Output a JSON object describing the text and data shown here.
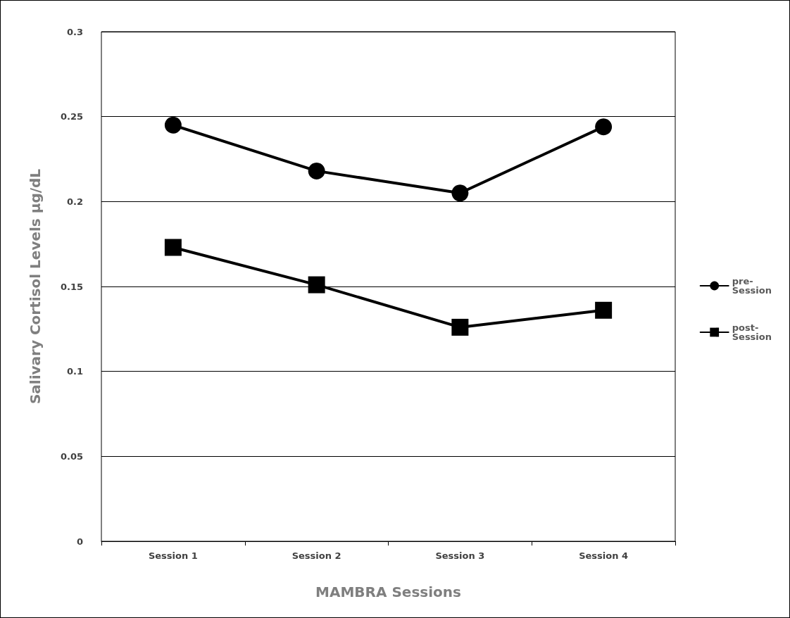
{
  "chart_data": {
    "type": "line",
    "xlabel": "MAMBRA Sessions",
    "ylabel": "Salivary Cortisol Levels µg/dL",
    "categories": [
      "Session 1",
      "Session 2",
      "Session 3",
      "Session 4"
    ],
    "series": [
      {
        "name": "pre-Session",
        "color": "#000000",
        "marker": "circle",
        "values": [
          0.245,
          0.218,
          0.205,
          0.244
        ]
      },
      {
        "name": "post-Session",
        "color": "#000000",
        "marker": "square",
        "values": [
          0.173,
          0.151,
          0.126,
          0.136
        ]
      }
    ],
    "ylim": [
      0,
      0.3
    ],
    "yticks": [
      0,
      0.05,
      0.1,
      0.15,
      0.2,
      0.25,
      0.3
    ],
    "grid": "y",
    "legend": "right",
    "line_style": "solid"
  }
}
